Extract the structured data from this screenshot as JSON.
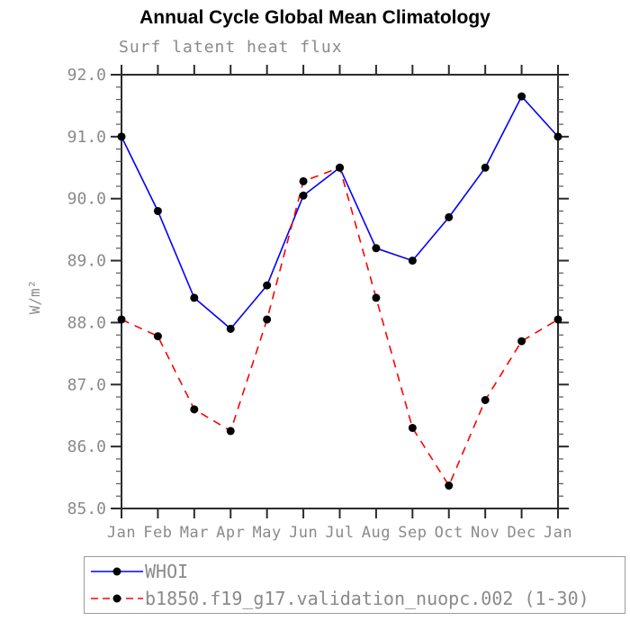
{
  "chart_data": {
    "type": "line",
    "title": "Annual Cycle Global Mean Climatology",
    "subtitle": "Surf latent heat flux",
    "ylabel": "W/m²",
    "xlabel": "",
    "x": [
      "Jan",
      "Feb",
      "Mar",
      "Apr",
      "May",
      "Jun",
      "Jul",
      "Aug",
      "Sep",
      "Oct",
      "Nov",
      "Dec",
      "Jan"
    ],
    "ylim": [
      85.0,
      92.0
    ],
    "ytick_step": 1.0,
    "yminor_step": 0.2,
    "grid": "off",
    "legend_position": "bottom",
    "series": [
      {
        "name": "WHOI",
        "style": "solid",
        "color": "#0000ff",
        "values": [
          91.0,
          89.8,
          88.4,
          87.9,
          88.6,
          90.05,
          90.5,
          89.2,
          89.0,
          89.7,
          90.5,
          91.65,
          91.0
        ]
      },
      {
        "name": "b1850.f19_g17.validation_nuopc.002 (1-30)",
        "style": "dashed",
        "color": "#ff0000",
        "values": [
          88.05,
          87.78,
          86.6,
          86.25,
          88.05,
          90.28,
          90.5,
          88.4,
          86.3,
          85.37,
          86.75,
          87.7,
          88.05
        ]
      }
    ],
    "marker_color": "#000000",
    "axis_color": "#2b2b2b",
    "minor_tick_color": "#555555",
    "label_color": "#8a8a8a"
  }
}
